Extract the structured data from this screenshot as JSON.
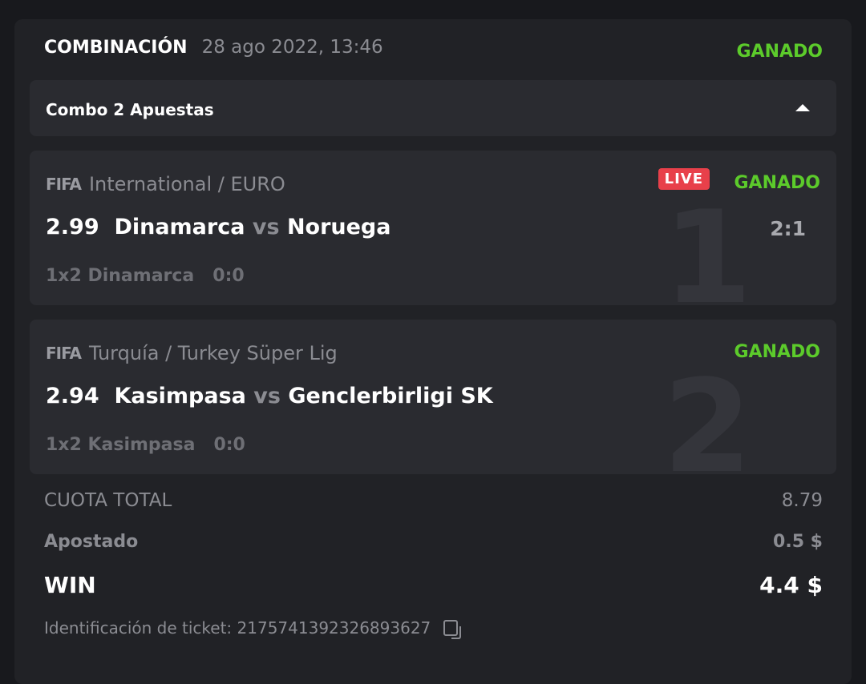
{
  "header": {
    "title": "COMBINACIÓN",
    "date": "28 ago 2022, 13:46",
    "status": "GANADO"
  },
  "combo": {
    "label": "Combo 2 Apuestas",
    "toggle_icon": "caret-up-icon"
  },
  "bets": [
    {
      "index": "1",
      "sport_icon": "FIFA",
      "league": "International / EURO",
      "live": "LIVE",
      "status": "GANADO",
      "odds": "2.99",
      "home": "Dinamarca",
      "vs": "vs",
      "away": "Noruega",
      "score": "2:1",
      "selection": "1x2 Dinamarca",
      "selection_score": "0:0"
    },
    {
      "index": "2",
      "sport_icon": "FIFA",
      "league": "Turquía / Turkey Süper Lig",
      "status": "GANADO",
      "odds": "2.94",
      "home": "Kasimpasa",
      "vs": "vs",
      "away": "Genclerbirligi SK",
      "selection": "1x2 Kasimpasa",
      "selection_score": "0:0"
    }
  ],
  "summary": {
    "total_odds_label": "CUOTA TOTAL",
    "total_odds": "8.79",
    "staked_label": "Apostado",
    "staked": "0.5 $",
    "win_label": "WIN",
    "win": "4.4 $"
  },
  "ticket": {
    "label": "Identificación de ticket:",
    "id": "2175741392326893627"
  },
  "colors": {
    "won": "#5ccb2b",
    "live": "#e8404a",
    "background": "#212226"
  }
}
